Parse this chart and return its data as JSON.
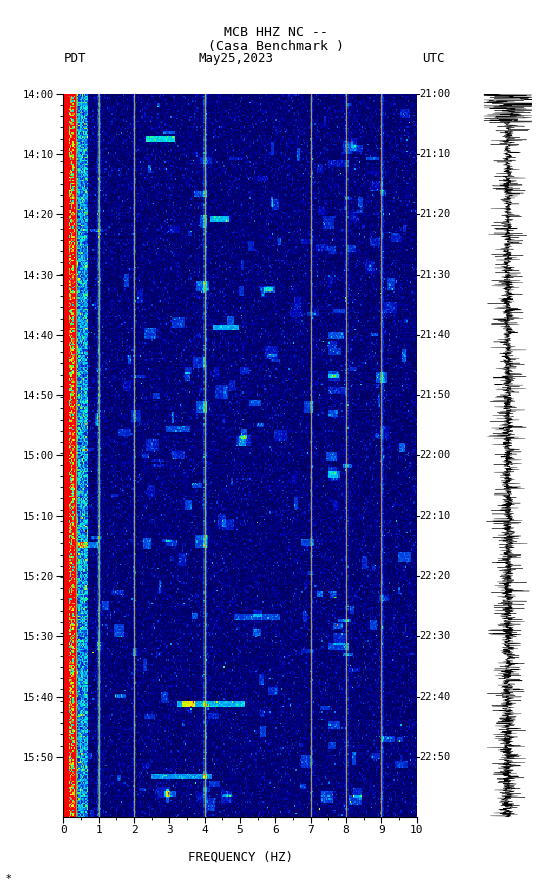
{
  "title_line1": "MCB HHZ NC --",
  "title_line2": "(Casa Benchmark )",
  "date_label": "May25,2023",
  "tz_left": "PDT",
  "tz_right": "UTC",
  "time_left_labels": [
    "14:00",
    "14:10",
    "14:20",
    "14:30",
    "14:40",
    "14:50",
    "15:00",
    "15:10",
    "15:20",
    "15:30",
    "15:40",
    "15:50"
  ],
  "time_right_labels": [
    "21:00",
    "21:10",
    "21:20",
    "21:30",
    "21:40",
    "21:50",
    "22:00",
    "22:10",
    "22:20",
    "22:30",
    "22:40",
    "22:50"
  ],
  "freq_min": 0,
  "freq_max": 10,
  "freq_label": "FREQUENCY (HZ)",
  "freq_ticks": [
    0,
    1,
    2,
    3,
    4,
    5,
    6,
    7,
    8,
    9,
    10
  ],
  "vertical_lines_freq": [
    0.35,
    1.0,
    2.0,
    4.0,
    7.0,
    8.0,
    9.0
  ],
  "background_color": "#ffffff",
  "logo_color": "#006400",
  "random_seed": 12345,
  "n_time": 500,
  "n_freq": 300
}
